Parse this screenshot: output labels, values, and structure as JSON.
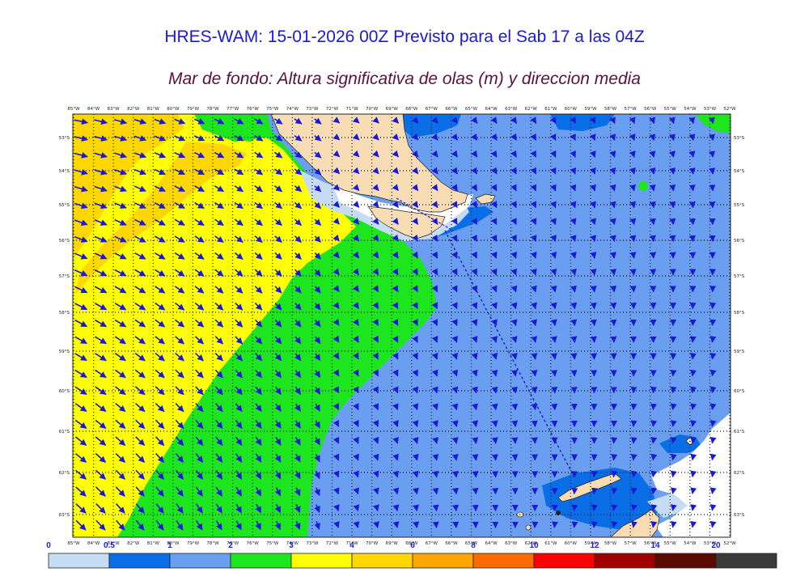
{
  "title": "HRES-WAM: 15-01-2026 00Z Previsto para el Sab 17 a las 04Z",
  "subtitle": "Mar de fondo: Altura significativa de olas (m) y direccion media",
  "lon_labels": [
    "85°W",
    "84°W",
    "83°W",
    "82°W",
    "81°W",
    "80°W",
    "79°W",
    "78°W",
    "77°W",
    "76°W",
    "75°W",
    "74°W",
    "73°W",
    "72°W",
    "71°W",
    "70°W",
    "69°W",
    "68°W",
    "67°W",
    "66°W",
    "65°W",
    "64°W",
    "63°W",
    "62°W",
    "61°W",
    "60°W",
    "59°W",
    "58°W",
    "57°W",
    "56°W",
    "55°W",
    "54°W",
    "53°W",
    "52°W"
  ],
  "lat_labels": [
    "53°S",
    "54°S",
    "55°S",
    "56°S",
    "57°S",
    "58°S",
    "59°S",
    "60°S",
    "61°S",
    "62°S",
    "63°S"
  ],
  "colorbar": {
    "labels": [
      "0",
      "0.5",
      "1",
      "2",
      "3",
      "4",
      "6",
      "8",
      "10",
      "12",
      "14",
      "20"
    ],
    "colors": [
      "#c6dcf4",
      "#0a6ee6",
      "#6a9ef0",
      "#1ee61e",
      "#ffff00",
      "#ffd700",
      "#ffa500",
      "#ff6a00",
      "#ff0000",
      "#a00000",
      "#5a0a00",
      "#3a3a3a"
    ]
  },
  "colors": {
    "land": "#f7dcb4",
    "ice": "#ffffff",
    "arrows": "#1a1ad6",
    "title": "#1a1ad6",
    "subtitle": "#5a1040"
  }
}
